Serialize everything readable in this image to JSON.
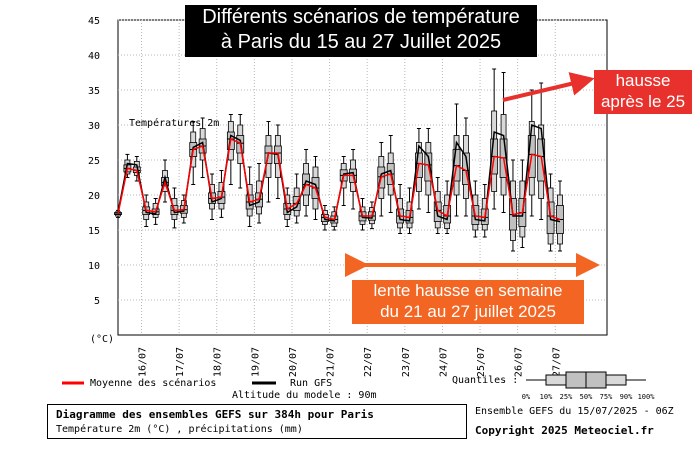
{
  "title_lines": [
    "Différents scénarios de température",
    "à Paris du 15 au 27 Juillet 2025"
  ],
  "annotations": {
    "hausse_lines": [
      "hausse",
      "après le 25"
    ],
    "lente_lines": [
      "lente hausse en semaine",
      "du 21 au 27 juillet 2025"
    ]
  },
  "legend": {
    "mean": "Moyenne des scénarios",
    "gfs": "Run GFS",
    "altitude": "Altitude du modele : 90m",
    "quantiles_label": "Quantiles :",
    "quantile_ticks": [
      "0%",
      "10%",
      "25%",
      "50%",
      "75%",
      "90%",
      "100%"
    ]
  },
  "footer": {
    "line1": "Diagramme des ensembles GEFS sur 384h pour Paris",
    "line2": "Température 2m (°C) , précipitations (mm)",
    "run": "Ensemble GEFS du 15/07/2025 - 06Z",
    "copyright": "Copyright 2025 Meteociel.fr"
  },
  "colors": {
    "mean": "#ff0000",
    "gfs": "#000000",
    "box": "#c0c0c0",
    "hausse_bg": "#e8312d",
    "lente_bg": "#f26522",
    "arrow_lente": "#f26522",
    "arrow_hausse": "#e8312d"
  },
  "chart_data": {
    "type": "box",
    "series_label": "Températures 2m",
    "unit_label": "(°C)",
    "ylim": [
      0,
      45
    ],
    "yticks": [
      5,
      10,
      15,
      20,
      25,
      30,
      35,
      40,
      45
    ],
    "xlim": [
      0,
      20.8
    ],
    "date_ticks": [
      {
        "x": 1,
        "label": "16/07"
      },
      {
        "x": 2.6,
        "label": "17/07"
      },
      {
        "x": 4.2,
        "label": "18/07"
      },
      {
        "x": 5.8,
        "label": "19/07"
      },
      {
        "x": 7.4,
        "label": "20/07"
      },
      {
        "x": 9.0,
        "label": "21/07"
      },
      {
        "x": 10.6,
        "label": "22/07"
      },
      {
        "x": 12.2,
        "label": "23/07"
      },
      {
        "x": 13.8,
        "label": "24/07"
      },
      {
        "x": 15.4,
        "label": "25/07"
      },
      {
        "x": 17.0,
        "label": "26/07"
      },
      {
        "x": 18.6,
        "label": "27/07"
      }
    ],
    "mean": [
      17.3,
      23.8,
      23.5,
      17.8,
      17.6,
      21.8,
      17.8,
      17.9,
      26.5,
      27.0,
      19.5,
      19.7,
      28.0,
      27.4,
      19.0,
      19.4,
      26.0,
      26.0,
      18.0,
      18.8,
      21.5,
      21.0,
      16.8,
      16.5,
      22.8,
      22.8,
      17.0,
      17.0,
      22.6,
      23.0,
      17.0,
      16.8,
      24.5,
      24.3,
      17.8,
      17.0,
      24.2,
      23.5,
      17.0,
      16.8,
      25.5,
      25.3,
      17.2,
      17.5,
      25.8,
      25.5,
      17.0,
      16.5
    ],
    "gfs": [
      17.5,
      24.5,
      24.3,
      17.5,
      17.3,
      22.5,
      17.5,
      17.7,
      26.8,
      27.5,
      19.0,
      19.5,
      28.5,
      27.8,
      18.5,
      19.0,
      26.0,
      25.8,
      17.5,
      18.3,
      22.0,
      21.5,
      16.5,
      16.3,
      23.0,
      23.2,
      16.8,
      16.7,
      23.0,
      23.5,
      16.5,
      16.3,
      27.0,
      25.5,
      17.0,
      16.5,
      27.5,
      25.5,
      16.5,
      16.3,
      29.0,
      28.5,
      17.0,
      17.0,
      30.0,
      29.5,
      16.5,
      16.2
    ],
    "boxes": [
      {
        "x": 0.0,
        "q": [
          16.8,
          17.0,
          17.2,
          17.3,
          17.5,
          17.6,
          17.8
        ]
      },
      {
        "x": 0.4,
        "q": [
          22.5,
          23.0,
          23.3,
          23.8,
          24.3,
          25.0,
          25.8
        ]
      },
      {
        "x": 0.8,
        "q": [
          22.0,
          22.8,
          23.2,
          23.5,
          24.0,
          24.8,
          25.5
        ]
      },
      {
        "x": 1.2,
        "q": [
          15.5,
          16.5,
          17.2,
          17.8,
          18.3,
          19.0,
          20.0
        ]
      },
      {
        "x": 1.6,
        "q": [
          15.8,
          16.8,
          17.2,
          17.6,
          18.0,
          18.8,
          19.5
        ]
      },
      {
        "x": 2.0,
        "q": [
          19.0,
          20.5,
          21.3,
          21.8,
          22.5,
          23.5,
          25.0
        ]
      },
      {
        "x": 2.4,
        "q": [
          15.3,
          16.5,
          17.2,
          17.8,
          18.5,
          19.5,
          21.0
        ]
      },
      {
        "x": 2.8,
        "q": [
          16.0,
          16.8,
          17.4,
          17.9,
          18.5,
          19.2,
          20.0
        ]
      },
      {
        "x": 3.2,
        "q": [
          21.5,
          24.0,
          25.5,
          26.5,
          27.5,
          29.0,
          30.5
        ]
      },
      {
        "x": 3.6,
        "q": [
          22.5,
          25.0,
          26.0,
          27.0,
          28.0,
          29.5,
          31.0
        ]
      },
      {
        "x": 4.0,
        "q": [
          16.5,
          18.0,
          18.8,
          19.5,
          20.3,
          21.5,
          23.0
        ]
      },
      {
        "x": 4.4,
        "q": [
          16.8,
          18.0,
          18.8,
          19.7,
          20.5,
          21.8,
          23.5
        ]
      },
      {
        "x": 4.8,
        "q": [
          21.5,
          25.0,
          26.5,
          28.0,
          29.0,
          30.5,
          31.5
        ]
      },
      {
        "x": 5.2,
        "q": [
          21.0,
          24.5,
          26.0,
          27.4,
          28.5,
          30.0,
          31.5
        ]
      },
      {
        "x": 5.6,
        "q": [
          15.5,
          17.0,
          18.0,
          19.0,
          20.0,
          21.5,
          24.0
        ]
      },
      {
        "x": 6.0,
        "q": [
          16.0,
          17.3,
          18.3,
          19.4,
          20.3,
          22.0,
          24.5
        ]
      },
      {
        "x": 6.4,
        "q": [
          19.0,
          22.5,
          24.5,
          26.0,
          27.0,
          28.5,
          30.5
        ]
      },
      {
        "x": 6.8,
        "q": [
          19.5,
          22.5,
          24.5,
          26.0,
          27.0,
          28.5,
          30.0
        ]
      },
      {
        "x": 7.2,
        "q": [
          15.5,
          16.5,
          17.2,
          18.0,
          18.8,
          20.0,
          21.0
        ]
      },
      {
        "x": 7.6,
        "q": [
          16.0,
          17.0,
          17.8,
          18.8,
          19.8,
          21.0,
          23.0
        ]
      },
      {
        "x": 8.0,
        "q": [
          17.0,
          18.5,
          20.0,
          21.5,
          23.0,
          24.5,
          26.5
        ]
      },
      {
        "x": 8.4,
        "q": [
          16.5,
          18.0,
          19.5,
          21.0,
          22.5,
          24.0,
          25.5
        ]
      },
      {
        "x": 8.8,
        "q": [
          15.0,
          15.8,
          16.2,
          16.8,
          17.2,
          17.8,
          18.5
        ]
      },
      {
        "x": 9.2,
        "q": [
          15.0,
          15.5,
          16.0,
          16.5,
          17.0,
          17.6,
          18.3
        ]
      },
      {
        "x": 9.6,
        "q": [
          18.5,
          21.0,
          22.0,
          22.8,
          23.6,
          24.5,
          25.5
        ]
      },
      {
        "x": 10.0,
        "q": [
          18.0,
          20.5,
          21.8,
          22.8,
          23.7,
          25.0,
          26.5
        ]
      },
      {
        "x": 10.4,
        "q": [
          15.0,
          15.8,
          16.3,
          17.0,
          17.6,
          18.3,
          19.5
        ]
      },
      {
        "x": 10.8,
        "q": [
          15.2,
          15.9,
          16.4,
          17.0,
          17.6,
          18.2,
          19.0
        ]
      },
      {
        "x": 11.2,
        "q": [
          17.0,
          19.5,
          21.0,
          22.6,
          24.0,
          25.5,
          27.5
        ]
      },
      {
        "x": 11.6,
        "q": [
          17.5,
          20.0,
          21.5,
          23.0,
          24.5,
          26.0,
          28.5
        ]
      },
      {
        "x": 12.0,
        "q": [
          14.5,
          15.3,
          16.0,
          17.0,
          18.0,
          19.5,
          21.5
        ]
      },
      {
        "x": 12.4,
        "q": [
          14.5,
          15.3,
          16.0,
          16.8,
          17.8,
          19.0,
          21.0
        ]
      },
      {
        "x": 12.8,
        "q": [
          18.0,
          20.5,
          22.5,
          24.5,
          26.0,
          27.5,
          29.5
        ]
      },
      {
        "x": 13.2,
        "q": [
          17.5,
          20.0,
          22.0,
          24.3,
          26.0,
          27.5,
          29.5
        ]
      },
      {
        "x": 13.6,
        "q": [
          14.5,
          15.3,
          16.2,
          17.8,
          19.0,
          20.5,
          22.5
        ]
      },
      {
        "x": 14.0,
        "q": [
          14.5,
          15.2,
          16.0,
          17.0,
          18.5,
          20.0,
          22.0
        ]
      },
      {
        "x": 14.4,
        "q": [
          17.0,
          20.0,
          22.0,
          24.2,
          26.5,
          28.5,
          33.0
        ]
      },
      {
        "x": 14.8,
        "q": [
          17.0,
          19.5,
          21.5,
          23.5,
          26.0,
          28.5,
          31.0
        ]
      },
      {
        "x": 15.2,
        "q": [
          14.0,
          15.0,
          15.8,
          17.0,
          18.5,
          20.0,
          22.0
        ]
      },
      {
        "x": 15.6,
        "q": [
          14.0,
          15.0,
          15.8,
          16.8,
          18.0,
          19.5,
          21.5
        ]
      },
      {
        "x": 16.0,
        "q": [
          18.0,
          20.5,
          23.0,
          25.5,
          28.0,
          32.0,
          38.0
        ]
      },
      {
        "x": 16.4,
        "q": [
          17.5,
          20.0,
          22.5,
          25.3,
          28.0,
          31.5,
          37.5
        ]
      },
      {
        "x": 16.8,
        "q": [
          12.0,
          13.5,
          15.0,
          17.2,
          19.5,
          22.0,
          25.0
        ]
      },
      {
        "x": 17.2,
        "q": [
          12.5,
          14.0,
          15.5,
          17.5,
          19.5,
          22.0,
          25.0
        ]
      },
      {
        "x": 17.6,
        "q": [
          17.0,
          20.0,
          22.5,
          25.8,
          28.5,
          30.5,
          35.0
        ]
      },
      {
        "x": 18.0,
        "q": [
          16.5,
          19.5,
          22.0,
          25.5,
          28.0,
          30.0,
          36.0
        ]
      },
      {
        "x": 18.4,
        "q": [
          12.0,
          13.0,
          14.5,
          17.0,
          19.0,
          21.0,
          23.0
        ]
      },
      {
        "x": 18.8,
        "q": [
          12.0,
          13.0,
          14.5,
          16.5,
          18.5,
          20.0,
          22.0
        ]
      }
    ]
  }
}
